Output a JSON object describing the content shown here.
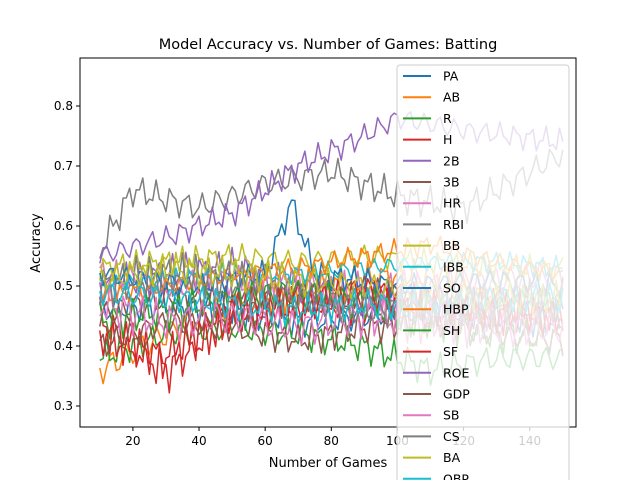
{
  "chart_data": {
    "type": "line",
    "title": "Model Accuracy vs. Number of Games: Batting",
    "xlabel": "Number of Games",
    "ylabel": "Accuracy",
    "xlim": [
      4,
      154
    ],
    "ylim": [
      0.265,
      0.88
    ],
    "xticks": [
      20,
      40,
      60,
      80,
      100,
      120,
      140
    ],
    "yticks": [
      0.3,
      0.4,
      0.5,
      0.6,
      0.7,
      0.8
    ],
    "grid": false,
    "legend_position": "upper-right",
    "x_start": 10,
    "x_end": 150,
    "series": [
      {
        "name": "PA",
        "color": "#1f77b4",
        "anchors": [
          [
            10,
            0.46
          ],
          [
            30,
            0.47
          ],
          [
            50,
            0.46
          ],
          [
            70,
            0.44
          ],
          [
            90,
            0.45
          ],
          [
            110,
            0.46
          ],
          [
            130,
            0.45
          ],
          [
            150,
            0.44
          ]
        ],
        "amp": 0.03
      },
      {
        "name": "AB",
        "color": "#ff7f0e",
        "anchors": [
          [
            10,
            0.36
          ],
          [
            30,
            0.42
          ],
          [
            50,
            0.47
          ],
          [
            70,
            0.49
          ],
          [
            90,
            0.51
          ],
          [
            110,
            0.52
          ],
          [
            130,
            0.51
          ],
          [
            150,
            0.5
          ]
        ],
        "amp": 0.035
      },
      {
        "name": "R",
        "color": "#2ca02c",
        "anchors": [
          [
            10,
            0.38
          ],
          [
            30,
            0.42
          ],
          [
            50,
            0.43
          ],
          [
            70,
            0.42
          ],
          [
            90,
            0.4
          ],
          [
            110,
            0.36
          ],
          [
            130,
            0.38
          ],
          [
            150,
            0.38
          ]
        ],
        "amp": 0.03
      },
      {
        "name": "H",
        "color": "#d62728",
        "anchors": [
          [
            10,
            0.44
          ],
          [
            30,
            0.36
          ],
          [
            50,
            0.46
          ],
          [
            70,
            0.48
          ],
          [
            90,
            0.47
          ],
          [
            110,
            0.45
          ],
          [
            130,
            0.46
          ],
          [
            150,
            0.46
          ]
        ],
        "amp": 0.045
      },
      {
        "name": "2B",
        "color": "#9467bd",
        "anchors": [
          [
            10,
            0.5
          ],
          [
            30,
            0.52
          ],
          [
            50,
            0.53
          ],
          [
            70,
            0.5
          ],
          [
            90,
            0.47
          ],
          [
            110,
            0.46
          ],
          [
            130,
            0.45
          ],
          [
            150,
            0.45
          ]
        ],
        "amp": 0.035
      },
      {
        "name": "3B",
        "color": "#8c564b",
        "anchors": [
          [
            10,
            0.45
          ],
          [
            30,
            0.48
          ],
          [
            50,
            0.47
          ],
          [
            70,
            0.48
          ],
          [
            90,
            0.49
          ],
          [
            110,
            0.48
          ],
          [
            130,
            0.47
          ],
          [
            150,
            0.46
          ]
        ],
        "amp": 0.035
      },
      {
        "name": "HR",
        "color": "#e377c2",
        "anchors": [
          [
            10,
            0.52
          ],
          [
            30,
            0.5
          ],
          [
            50,
            0.51
          ],
          [
            70,
            0.5
          ],
          [
            90,
            0.49
          ],
          [
            110,
            0.5
          ],
          [
            130,
            0.51
          ],
          [
            150,
            0.52
          ]
        ],
        "amp": 0.035
      },
      {
        "name": "RBI",
        "color": "#7f7f7f",
        "anchors": [
          [
            10,
            0.56
          ],
          [
            20,
            0.66
          ],
          [
            40,
            0.63
          ],
          [
            60,
            0.67
          ],
          [
            80,
            0.69
          ],
          [
            100,
            0.65
          ],
          [
            120,
            0.63
          ],
          [
            150,
            0.72
          ]
        ],
        "amp": 0.03
      },
      {
        "name": "BB",
        "color": "#bcbd22",
        "anchors": [
          [
            10,
            0.53
          ],
          [
            30,
            0.54
          ],
          [
            50,
            0.55
          ],
          [
            70,
            0.54
          ],
          [
            90,
            0.55
          ],
          [
            110,
            0.54
          ],
          [
            130,
            0.53
          ],
          [
            150,
            0.53
          ]
        ],
        "amp": 0.025
      },
      {
        "name": "IBB",
        "color": "#17becf",
        "anchors": [
          [
            10,
            0.5
          ],
          [
            30,
            0.51
          ],
          [
            50,
            0.52
          ],
          [
            70,
            0.52
          ],
          [
            90,
            0.53
          ],
          [
            110,
            0.54
          ],
          [
            130,
            0.54
          ],
          [
            150,
            0.53
          ]
        ],
        "amp": 0.02
      },
      {
        "name": "SO",
        "color": "#1f77b4",
        "anchors": [
          [
            10,
            0.52
          ],
          [
            40,
            0.5
          ],
          [
            60,
            0.52
          ],
          [
            68,
            0.64
          ],
          [
            75,
            0.52
          ],
          [
            100,
            0.5
          ],
          [
            130,
            0.51
          ],
          [
            150,
            0.5
          ]
        ],
        "amp": 0.025
      },
      {
        "name": "HBP",
        "color": "#ff7f0e",
        "anchors": [
          [
            10,
            0.48
          ],
          [
            30,
            0.5
          ],
          [
            50,
            0.52
          ],
          [
            70,
            0.53
          ],
          [
            90,
            0.55
          ],
          [
            110,
            0.57
          ],
          [
            130,
            0.54
          ],
          [
            150,
            0.52
          ]
        ],
        "amp": 0.02
      },
      {
        "name": "SH",
        "color": "#2ca02c",
        "anchors": [
          [
            10,
            0.44
          ],
          [
            30,
            0.46
          ],
          [
            50,
            0.48
          ],
          [
            70,
            0.49
          ],
          [
            90,
            0.47
          ],
          [
            110,
            0.44
          ],
          [
            130,
            0.42
          ],
          [
            150,
            0.41
          ]
        ],
        "amp": 0.035
      },
      {
        "name": "SF",
        "color": "#d62728",
        "anchors": [
          [
            10,
            0.42
          ],
          [
            30,
            0.38
          ],
          [
            50,
            0.45
          ],
          [
            70,
            0.47
          ],
          [
            90,
            0.49
          ],
          [
            110,
            0.47
          ],
          [
            130,
            0.46
          ],
          [
            150,
            0.45
          ]
        ],
        "amp": 0.04
      },
      {
        "name": "ROE",
        "color": "#9467bd",
        "anchors": [
          [
            10,
            0.55
          ],
          [
            30,
            0.58
          ],
          [
            50,
            0.62
          ],
          [
            70,
            0.7
          ],
          [
            90,
            0.75
          ],
          [
            100,
            0.78
          ],
          [
            120,
            0.76
          ],
          [
            150,
            0.74
          ]
        ],
        "amp": 0.025
      },
      {
        "name": "GDP",
        "color": "#8c564b",
        "anchors": [
          [
            10,
            0.4
          ],
          [
            30,
            0.44
          ],
          [
            50,
            0.43
          ],
          [
            70,
            0.41
          ],
          [
            90,
            0.43
          ],
          [
            110,
            0.44
          ],
          [
            130,
            0.42
          ],
          [
            150,
            0.41
          ]
        ],
        "amp": 0.03
      },
      {
        "name": "SB",
        "color": "#e377c2",
        "anchors": [
          [
            10,
            0.47
          ],
          [
            30,
            0.44
          ],
          [
            50,
            0.45
          ],
          [
            70,
            0.43
          ],
          [
            90,
            0.45
          ],
          [
            110,
            0.44
          ],
          [
            130,
            0.43
          ],
          [
            150,
            0.43
          ]
        ],
        "amp": 0.04
      },
      {
        "name": "CS",
        "color": "#7f7f7f",
        "anchors": [
          [
            10,
            0.5
          ],
          [
            30,
            0.52
          ],
          [
            50,
            0.51
          ],
          [
            70,
            0.48
          ],
          [
            90,
            0.46
          ],
          [
            110,
            0.46
          ],
          [
            130,
            0.47
          ],
          [
            150,
            0.48
          ]
        ],
        "amp": 0.04
      },
      {
        "name": "BA",
        "color": "#bcbd22",
        "anchors": [
          [
            10,
            0.51
          ],
          [
            30,
            0.53
          ],
          [
            50,
            0.52
          ],
          [
            70,
            0.51
          ],
          [
            90,
            0.5
          ],
          [
            110,
            0.49
          ],
          [
            130,
            0.48
          ],
          [
            150,
            0.48
          ]
        ],
        "amp": 0.03
      },
      {
        "name": "OBP",
        "color": "#17becf",
        "anchors": [
          [
            10,
            0.49
          ],
          [
            30,
            0.48
          ],
          [
            50,
            0.47
          ],
          [
            70,
            0.46
          ],
          [
            90,
            0.47
          ],
          [
            110,
            0.47
          ],
          [
            130,
            0.48
          ],
          [
            150,
            0.48
          ]
        ],
        "amp": 0.03
      }
    ]
  }
}
